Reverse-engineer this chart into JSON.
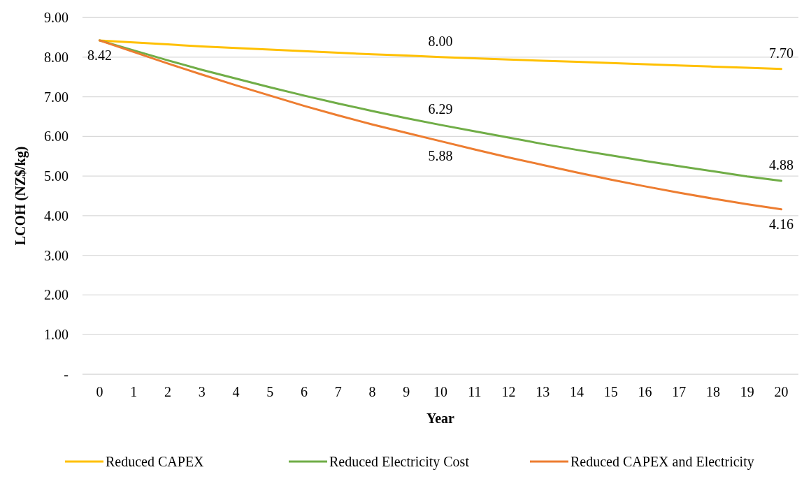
{
  "chart_data": {
    "type": "line",
    "xlabel": "Year",
    "ylabel": "LCOH (NZ$/kg)",
    "x": [
      0,
      1,
      2,
      3,
      4,
      5,
      6,
      7,
      8,
      9,
      10,
      11,
      12,
      13,
      14,
      15,
      16,
      17,
      18,
      19,
      20
    ],
    "xlim": [
      -0.5,
      20.5
    ],
    "xticks": [
      0,
      1,
      2,
      3,
      4,
      5,
      6,
      7,
      8,
      9,
      10,
      11,
      12,
      13,
      14,
      15,
      16,
      17,
      18,
      19,
      20
    ],
    "series": [
      {
        "name": "Reduced CAPEX",
        "color": "#ffc000",
        "values": [
          8.42,
          8.37,
          8.32,
          8.27,
          8.23,
          8.19,
          8.15,
          8.11,
          8.07,
          8.04,
          8.0,
          7.97,
          7.94,
          7.91,
          7.88,
          7.85,
          7.82,
          7.79,
          7.76,
          7.73,
          7.7
        ],
        "value_labels": [
          null,
          null,
          null,
          null,
          null,
          null,
          null,
          null,
          null,
          null,
          "8.00",
          null,
          null,
          null,
          null,
          null,
          null,
          null,
          null,
          null,
          "7.70"
        ]
      },
      {
        "name": "Reduced Electricity Cost",
        "color": "#70ad47",
        "values": [
          8.42,
          8.17,
          7.92,
          7.68,
          7.46,
          7.24,
          7.03,
          6.83,
          6.64,
          6.46,
          6.29,
          6.13,
          5.97,
          5.81,
          5.66,
          5.52,
          5.38,
          5.25,
          5.12,
          4.99,
          4.88
        ],
        "value_labels": [
          null,
          null,
          null,
          null,
          null,
          null,
          null,
          null,
          null,
          null,
          "6.29",
          null,
          null,
          null,
          null,
          null,
          null,
          null,
          null,
          null,
          "4.88"
        ]
      },
      {
        "name": "Reduced CAPEX and Electricity",
        "color": "#ed7d31",
        "values": [
          8.42,
          8.13,
          7.84,
          7.56,
          7.29,
          7.03,
          6.77,
          6.53,
          6.3,
          6.09,
          5.88,
          5.67,
          5.47,
          5.28,
          5.09,
          4.91,
          4.74,
          4.58,
          4.43,
          4.29,
          4.16
        ],
        "value_labels": [
          "8.42",
          null,
          null,
          null,
          null,
          null,
          null,
          null,
          null,
          null,
          "5.88",
          null,
          null,
          null,
          null,
          null,
          null,
          null,
          null,
          null,
          "4.16"
        ]
      }
    ],
    "ylim": [
      0,
      9
    ],
    "yticks": [
      {
        "value": 0,
        "label": "-"
      },
      {
        "value": 1,
        "label": "1.00"
      },
      {
        "value": 2,
        "label": "2.00"
      },
      {
        "value": 3,
        "label": "3.00"
      },
      {
        "value": 4,
        "label": "4.00"
      },
      {
        "value": 5,
        "label": "5.00"
      },
      {
        "value": 6,
        "label": "6.00"
      },
      {
        "value": 7,
        "label": "7.00"
      },
      {
        "value": 8,
        "label": "8.00"
      },
      {
        "value": 9,
        "label": "9.00"
      }
    ],
    "grid": "y",
    "legend": "bottom",
    "marker": "none",
    "line_style": "solid"
  }
}
